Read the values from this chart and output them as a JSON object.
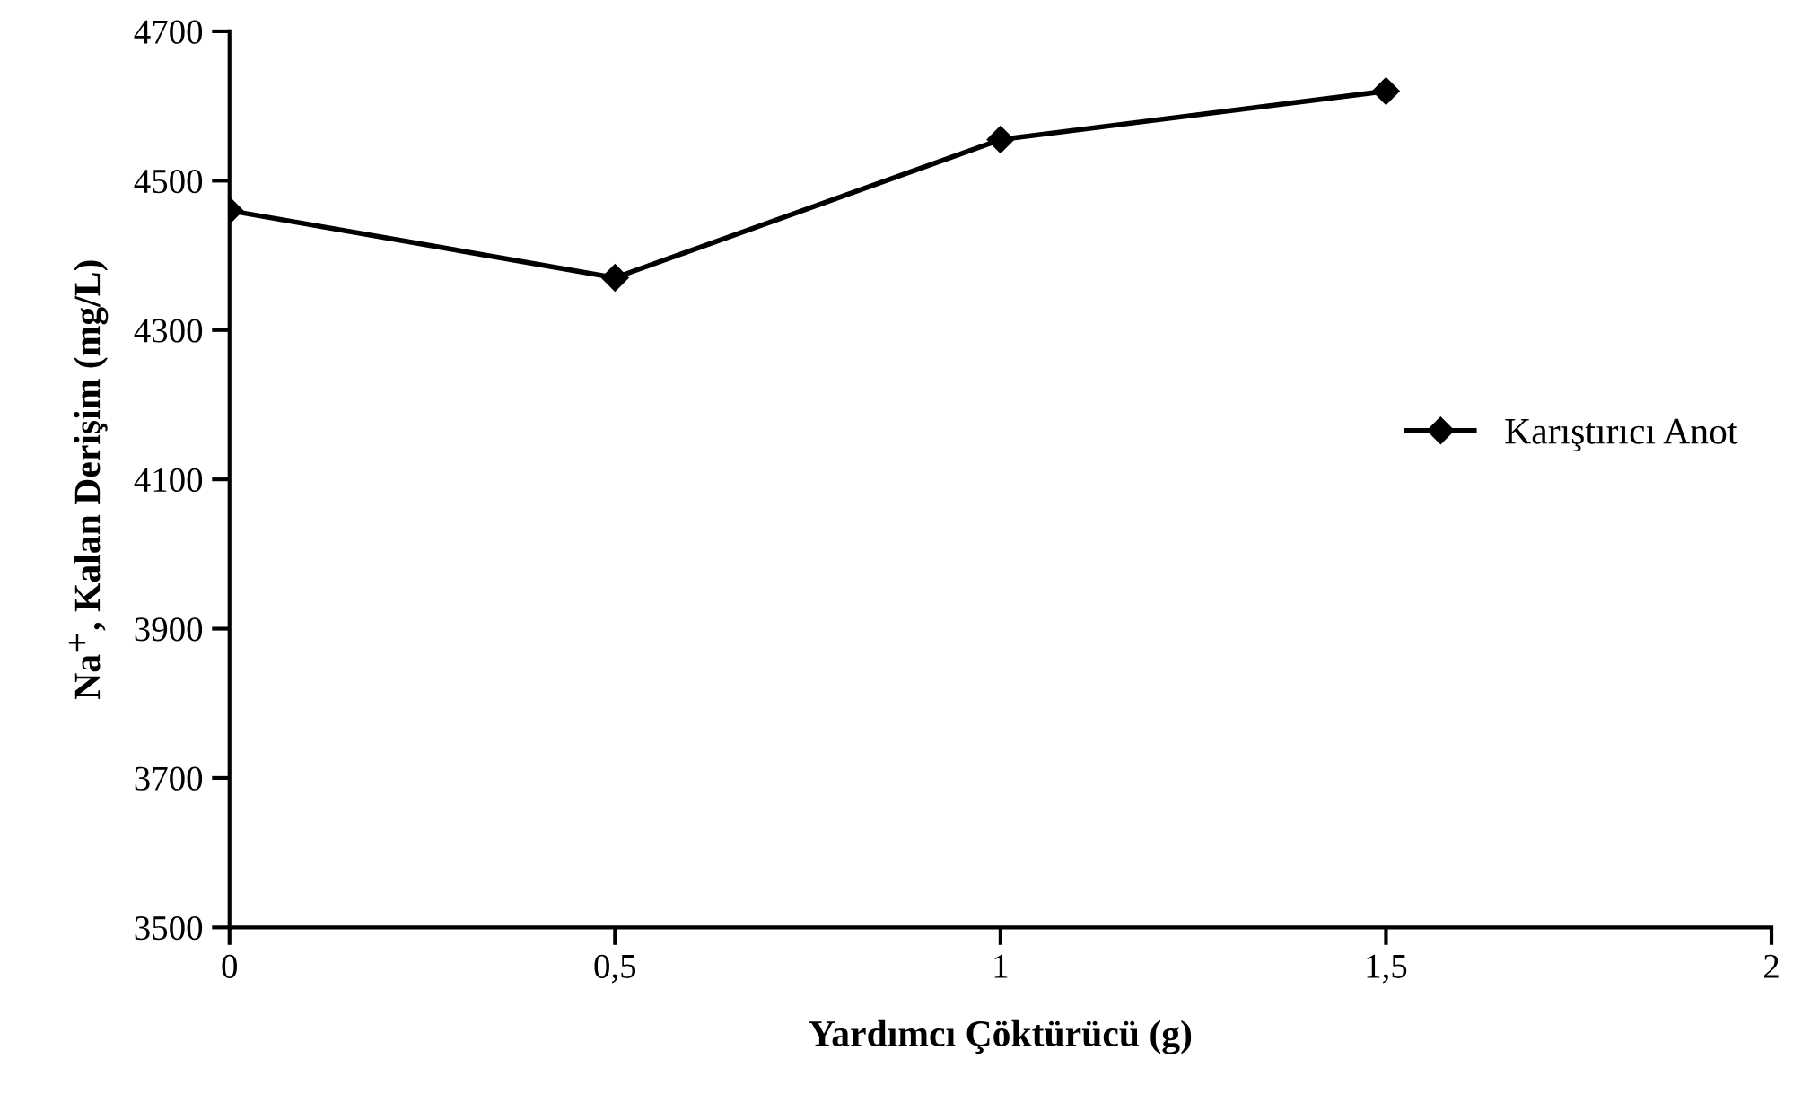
{
  "chart_data": {
    "type": "line",
    "xlabel": "Yardımcı Çöktürücü (g)",
    "ylabel": "Na$^{+}$, Kalan Derişim (mg/L)",
    "x": [
      0,
      0.5,
      1,
      1.5
    ],
    "series": [
      {
        "name": "Karıştırıcı Anot",
        "color": "#000000",
        "values": [
          4460,
          4370,
          4555,
          4620
        ]
      }
    ],
    "xlim": [
      0,
      2
    ],
    "xticks": [
      0,
      {
        "value": 0.5,
        "label": "0,5"
      },
      1,
      {
        "value": 1.5,
        "label": "1,5"
      },
      2
    ],
    "ylim": [
      3500,
      4700
    ],
    "yticks": [
      3500,
      3700,
      3900,
      4100,
      4300,
      4500,
      4700
    ],
    "grid": false,
    "legend": "right",
    "marker": "diamond",
    "line_style": "solid"
  }
}
